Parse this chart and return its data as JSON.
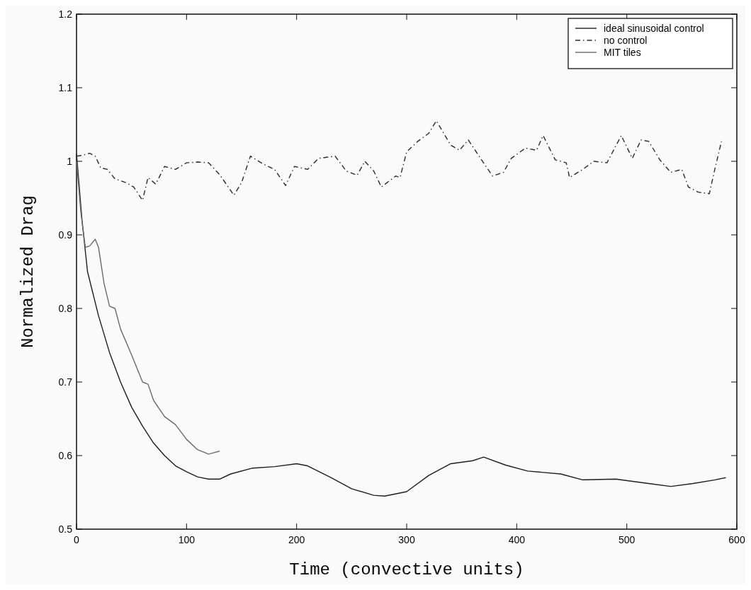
{
  "chart_data": {
    "type": "line",
    "xlabel": "Time (convective units)",
    "ylabel": "Normalized Drag",
    "xlim": [
      0,
      600
    ],
    "ylim": [
      0.5,
      1.2
    ],
    "xticks": [
      0,
      100,
      200,
      300,
      400,
      500,
      600
    ],
    "yticks": [
      0.5,
      0.6,
      0.7,
      0.8,
      0.9,
      1,
      1.1,
      1.2
    ],
    "grid": false,
    "legend": "top right",
    "marker": "none",
    "series": [
      {
        "name": "ideal sinusoidal control",
        "color": "#1e1e1e",
        "line_style": "solid",
        "x": [
          0,
          5,
          10,
          20,
          30,
          40,
          50,
          60,
          70,
          80,
          90,
          100,
          110,
          120,
          130,
          140,
          160,
          180,
          200,
          210,
          230,
          250,
          270,
          280,
          300,
          320,
          340,
          360,
          370,
          390,
          410,
          440,
          460,
          490,
          520,
          540,
          560,
          580,
          590
        ],
        "values": [
          1.01,
          0.92,
          0.85,
          0.79,
          0.74,
          0.7,
          0.666,
          0.64,
          0.617,
          0.6,
          0.586,
          0.578,
          0.571,
          0.568,
          0.568,
          0.575,
          0.583,
          0.585,
          0.589,
          0.586,
          0.571,
          0.555,
          0.546,
          0.545,
          0.551,
          0.573,
          0.589,
          0.593,
          0.598,
          0.587,
          0.579,
          0.575,
          0.567,
          0.568,
          0.562,
          0.558,
          0.562,
          0.567,
          0.57
        ]
      },
      {
        "name": "no control",
        "color": "#2a2a2a",
        "line_style": "dashed",
        "x": [
          0,
          5,
          12,
          17,
          22,
          28,
          35,
          45,
          52,
          60,
          65,
          72,
          80,
          90,
          100,
          110,
          120,
          130,
          143,
          150,
          158,
          170,
          180,
          190,
          198,
          210,
          220,
          235,
          245,
          255,
          262,
          270,
          277,
          290,
          294,
          300,
          310,
          320,
          327,
          340,
          348,
          356,
          368,
          378,
          388,
          395,
          408,
          418,
          424,
          435,
          445,
          448,
          460,
          470,
          482,
          495,
          505,
          513,
          520,
          530,
          540,
          550,
          556,
          565,
          575,
          580,
          586
        ],
        "values": [
          1.007,
          1.008,
          1.011,
          1.007,
          0.991,
          0.989,
          0.976,
          0.971,
          0.965,
          0.947,
          0.978,
          0.969,
          0.993,
          0.989,
          0.998,
          0.999,
          0.998,
          0.982,
          0.954,
          0.971,
          1.007,
          0.996,
          0.989,
          0.967,
          0.993,
          0.989,
          1.004,
          1.007,
          0.987,
          0.981,
          1.0,
          0.987,
          0.965,
          0.98,
          0.978,
          1.013,
          1.027,
          1.038,
          1.055,
          1.022,
          1.015,
          1.029,
          1.002,
          0.98,
          0.985,
          1.004,
          1.018,
          1.015,
          1.035,
          1.002,
          0.998,
          0.978,
          0.989,
          1.0,
          0.998,
          1.035,
          1.004,
          1.029,
          1.027,
          1.002,
          0.985,
          0.989,
          0.965,
          0.958,
          0.956,
          0.989,
          1.027
        ]
      },
      {
        "name": "MIT tiles",
        "color": "#6a6a6a",
        "line_style": "solid",
        "x": [
          0,
          4,
          8,
          12,
          17,
          20,
          25,
          30,
          35,
          40,
          50,
          60,
          65,
          70,
          80,
          90,
          100,
          110,
          120,
          125,
          130
        ],
        "values": [
          1.0,
          0.93,
          0.883,
          0.885,
          0.894,
          0.883,
          0.834,
          0.803,
          0.8,
          0.772,
          0.737,
          0.7,
          0.697,
          0.675,
          0.653,
          0.642,
          0.622,
          0.608,
          0.602,
          0.604,
          0.606
        ]
      }
    ]
  }
}
